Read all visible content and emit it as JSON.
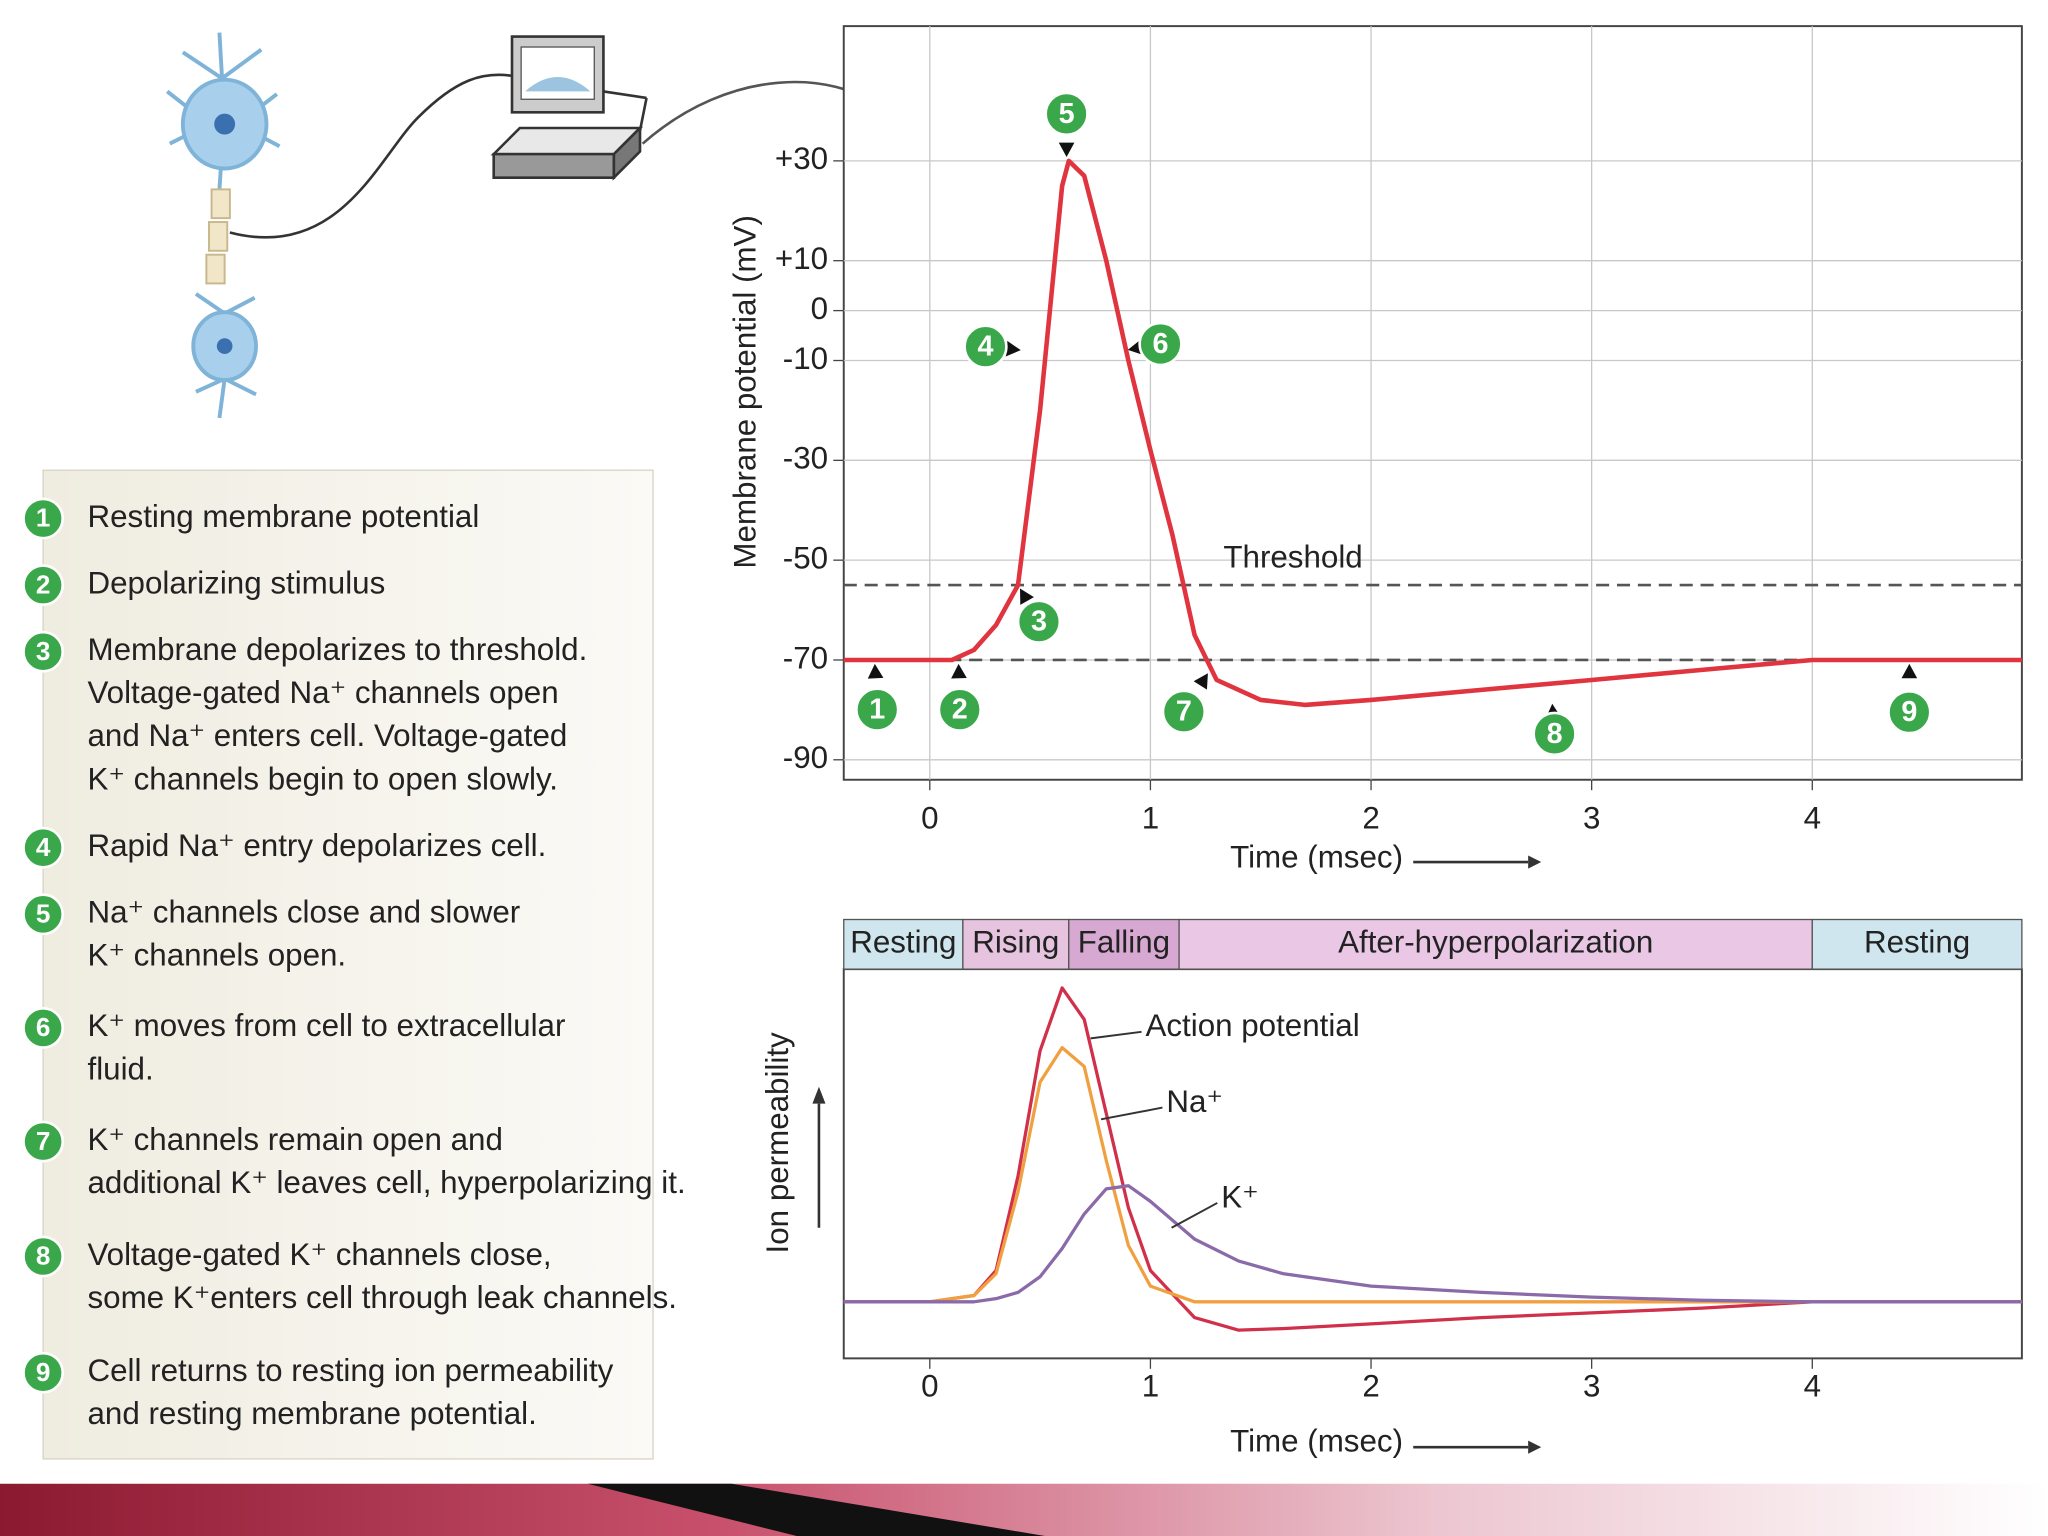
{
  "chart_data": [
    {
      "type": "line",
      "x_label": "Time (msec)",
      "y_label": "Membrane potential (mV)",
      "x": [
        -0.39,
        0.1,
        0.2,
        0.3,
        0.4,
        0.5,
        0.6,
        0.63,
        0.7,
        0.8,
        0.9,
        1.0,
        1.1,
        1.2,
        1.3,
        1.5,
        1.7,
        2.0,
        2.5,
        3.0,
        3.5,
        4.0,
        4.95
      ],
      "values": [
        -70,
        -70,
        -68,
        -63,
        -55,
        -20,
        25,
        30,
        27,
        10,
        -10,
        -28,
        -45,
        -65,
        -74,
        -78,
        -79,
        -78,
        -76,
        -74,
        -72,
        -70,
        -70
      ],
      "color": "#e0343f",
      "xlim": [
        -0.39,
        4.95
      ],
      "xticks": [
        0,
        1,
        2,
        3,
        4
      ],
      "ylim": [
        -94,
        57
      ],
      "yticks": [
        {
          "value": 30,
          "label": "+30"
        },
        {
          "value": 10,
          "label": "+10"
        },
        0,
        -10,
        -30,
        -50,
        -70,
        -90
      ],
      "grid": true,
      "reference_lines": [
        {
          "value": -55,
          "label": "Threshold"
        },
        {
          "value": -70
        }
      ],
      "annotations": [
        {
          "label": "1",
          "x": -0.25,
          "y": -70
        },
        {
          "label": "2",
          "x": 0.13,
          "y": -70
        },
        {
          "label": "3",
          "x": 0.4,
          "y": -55
        },
        {
          "label": "4",
          "x": 0.43,
          "y": -8
        },
        {
          "label": "5",
          "x": 0.62,
          "y": 30
        },
        {
          "label": "6",
          "x": 0.88,
          "y": -8
        },
        {
          "label": "7",
          "x": 1.27,
          "y": -72
        },
        {
          "label": "8",
          "x": 2.82,
          "y": -78
        },
        {
          "label": "9",
          "x": 4.44,
          "y": -70
        }
      ],
      "annotation_color": "#3aa84a"
    },
    {
      "type": "line",
      "x_label": "Time (msec)",
      "y_label": "Ion permeability",
      "x": [
        -0.39,
        0,
        0.2,
        0.3,
        0.4,
        0.5,
        0.6,
        0.7,
        0.8,
        0.9,
        1.0,
        1.2,
        1.4,
        1.6,
        2.0,
        2.5,
        3.0,
        3.5,
        4.0,
        4.95
      ],
      "series": [
        {
          "name": "Action potential",
          "color": "#d0304a",
          "values": [
            0,
            0,
            2,
            10,
            40,
            80,
            100,
            90,
            60,
            30,
            10,
            -5,
            -9,
            -8.5,
            -7,
            -5,
            -3.5,
            -2,
            0,
            0
          ]
        },
        {
          "name": "Na⁺",
          "color": "#f0a040",
          "values": [
            0,
            0,
            2,
            9,
            35,
            70,
            81,
            75,
            45,
            18,
            5,
            0,
            0,
            0,
            0,
            0,
            0,
            0,
            0,
            0
          ]
        },
        {
          "name": "K⁺",
          "color": "#8a6aa8",
          "values": [
            0,
            0,
            0,
            1,
            3,
            8,
            17,
            28,
            36,
            37,
            32,
            20,
            13,
            9,
            5,
            3,
            1.5,
            0.5,
            0,
            0
          ]
        }
      ],
      "xlim": [
        -0.39,
        4.95
      ],
      "xticks": [
        0,
        1,
        2,
        3,
        4
      ],
      "ylim": [
        -18,
        106
      ],
      "grid": false,
      "phases": [
        {
          "label": "Resting",
          "start": -0.39,
          "end": 0.15,
          "color": "#cfe6ee"
        },
        {
          "label": "Rising",
          "start": 0.15,
          "end": 0.63,
          "color": "#e6c4e0"
        },
        {
          "label": "Falling",
          "start": 0.63,
          "end": 1.13,
          "color": "#d7a8d2"
        },
        {
          "label": "After-hyperpolarization",
          "start": 1.13,
          "end": 4.0,
          "color": "#e9c7e5"
        },
        {
          "label": "Resting",
          "start": 4.0,
          "end": 4.95,
          "color": "#cfe6ee"
        }
      ]
    }
  ],
  "steps": [
    {
      "number": "1",
      "lines": [
        "Resting membrane potential"
      ]
    },
    {
      "number": "2",
      "lines": [
        "Depolarizing stimulus"
      ]
    },
    {
      "number": "3",
      "lines": [
        "Membrane depolarizes to threshold.",
        "Voltage-gated Na⁺ channels open",
        "and Na⁺ enters cell. Voltage-gated",
        "K⁺ channels begin to open slowly."
      ]
    },
    {
      "number": "4",
      "lines": [
        "Rapid Na⁺ entry depolarizes cell."
      ]
    },
    {
      "number": "5",
      "lines": [
        "Na⁺ channels close and slower",
        "K⁺ channels open."
      ]
    },
    {
      "number": "6",
      "lines": [
        "K⁺ moves from cell to extracellular",
        "fluid."
      ]
    },
    {
      "number": "7",
      "lines": [
        "K⁺ channels remain open and",
        "additional K⁺ leaves cell, hyperpolarizing it."
      ]
    },
    {
      "number": "8",
      "lines": [
        "Voltage-gated K⁺ channels close,",
        "some K⁺enters cell through leak channels."
      ]
    },
    {
      "number": "9",
      "lines": [
        "Cell returns to resting ion permeability",
        "and resting membrane potential."
      ]
    }
  ]
}
